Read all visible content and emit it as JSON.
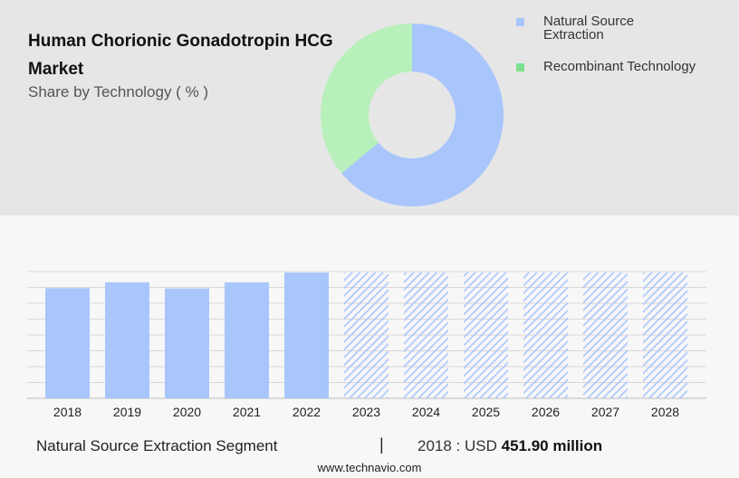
{
  "header": {
    "title": "Human Chorionic Gonadotropin HCG  Market",
    "subtitle": "Share by Technology ( % )"
  },
  "legend": [
    {
      "label": "Natural Source Extraction",
      "color": "#a8c6fc"
    },
    {
      "label": "Recombinant Technology",
      "color": "#7fe08f"
    }
  ],
  "chart_data": [
    {
      "type": "pie",
      "style": "donut",
      "title": "Share by Technology ( % )",
      "slices": [
        {
          "name": "Natural Source Extraction",
          "value": 64,
          "color": "#a8c6fc"
        },
        {
          "name": "Recombinant Technology",
          "value": 36,
          "color": "#b8f0bb"
        }
      ]
    },
    {
      "type": "bar",
      "categories": [
        "2018",
        "2019",
        "2020",
        "2021",
        "2022",
        "2023",
        "2024",
        "2025",
        "2026",
        "2027",
        "2028"
      ],
      "values": [
        451.9,
        476,
        451,
        476,
        516,
        516,
        516,
        516,
        516,
        516,
        516
      ],
      "forecast_from": "2023",
      "ylim": [
        0,
        520
      ],
      "grid": true,
      "color": "#a8c6fc"
    }
  ],
  "footer": {
    "segment": "Natural Source Extraction Segment",
    "separator": "|",
    "value_prefix": "2018 : USD",
    "value_amount": "451.90 million",
    "url": "www.technavio.com"
  }
}
